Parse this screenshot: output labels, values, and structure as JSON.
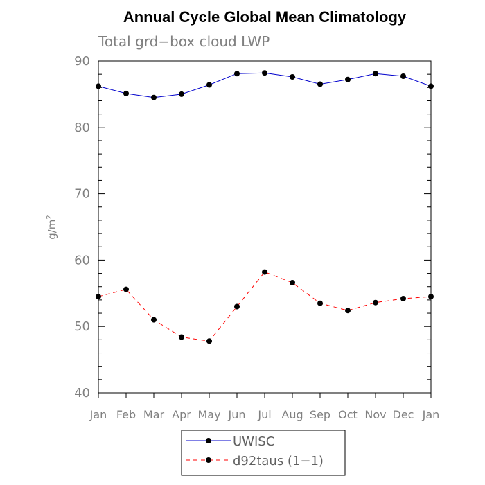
{
  "chart_data": {
    "type": "line",
    "title": "Annual Cycle Global Mean Climatology",
    "subtitle": "Total grd−box cloud LWP",
    "ylabel": "g/m",
    "ylabel_sup": "2",
    "xlabel": "",
    "categories": [
      "Jan",
      "Feb",
      "Mar",
      "Apr",
      "May",
      "Jun",
      "Jul",
      "Aug",
      "Sep",
      "Oct",
      "Nov",
      "Dec",
      "Jan"
    ],
    "ylim": [
      40,
      90
    ],
    "yticks": [
      40,
      50,
      60,
      70,
      80,
      90
    ],
    "grid": false,
    "legend_placement": "bottom",
    "series": [
      {
        "name": "UWISC",
        "color": "#0000cc",
        "dashed": false,
        "marker": "filled-circle",
        "values": [
          86.2,
          85.1,
          84.5,
          85.0,
          86.4,
          88.1,
          88.2,
          87.6,
          86.5,
          87.2,
          88.1,
          87.7,
          86.2
        ]
      },
      {
        "name": "d92taus (1−1)",
        "color": "#ff0000",
        "dashed": true,
        "marker": "filled-circle",
        "values": [
          54.5,
          55.6,
          51.0,
          48.4,
          47.8,
          53.0,
          58.2,
          56.6,
          53.5,
          52.4,
          53.6,
          54.2,
          54.5
        ]
      }
    ]
  }
}
